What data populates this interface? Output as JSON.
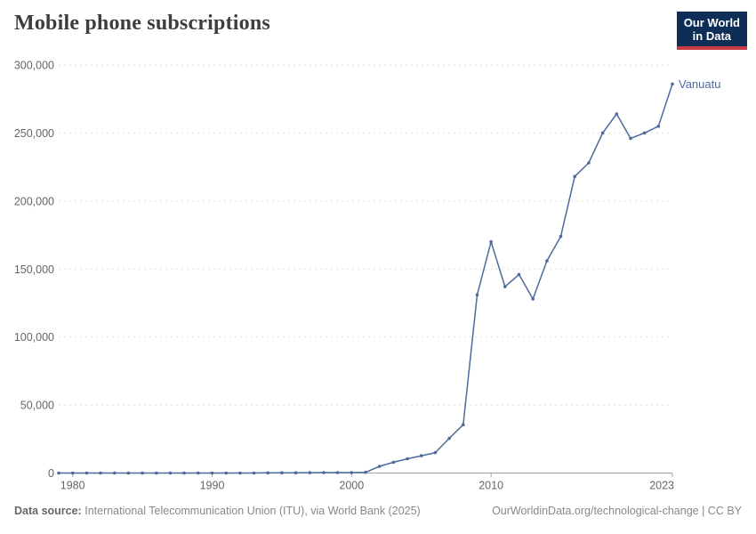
{
  "header": {
    "title": "Mobile phone subscriptions",
    "logo_line1": "Our World",
    "logo_line2": "in Data"
  },
  "footer": {
    "datasource_label": "Data source:",
    "datasource_text": "International Telecommunication Union (ITU), via World Bank (2025)",
    "link_text": "OurWorldinData.org/technological-change | CC BY"
  },
  "colors": {
    "line": "#4c6a9c",
    "entity_label": "#4c6a9c",
    "title": "#3d3d3d",
    "tick_label": "#666666",
    "grid": "#dddddd",
    "axis": "#a3a3a3",
    "footer_text": "#888888",
    "footer_bold": "#666666",
    "logo_bg": "#0f2e57",
    "logo_red": "#cb3b44"
  },
  "chart_data": {
    "type": "line",
    "title": "Mobile phone subscriptions",
    "xlabel": "",
    "ylabel": "",
    "ylim": [
      0,
      300000
    ],
    "yticks": [
      0,
      50000,
      100000,
      150000,
      200000,
      250000,
      300000
    ],
    "xticks": [
      1980,
      1990,
      2000,
      2010,
      2023
    ],
    "grid": true,
    "legend": "end-of-line entity label",
    "x": [
      1979,
      1980,
      1981,
      1982,
      1983,
      1984,
      1985,
      1986,
      1987,
      1988,
      1989,
      1990,
      1991,
      1992,
      1993,
      1994,
      1995,
      1996,
      1997,
      1998,
      1999,
      2000,
      2001,
      2002,
      2003,
      2004,
      2005,
      2006,
      2007,
      2008,
      2009,
      2010,
      2011,
      2012,
      2013,
      2014,
      2015,
      2016,
      2017,
      2018,
      2019,
      2020,
      2021,
      2022,
      2023
    ],
    "series": [
      {
        "name": "Vanuatu",
        "values": [
          0,
          0,
          0,
          0,
          0,
          0,
          0,
          0,
          0,
          0,
          0,
          0,
          0,
          0,
          0,
          150,
          180,
          220,
          260,
          300,
          320,
          350,
          500,
          4900,
          7900,
          10500,
          12700,
          15000,
          25500,
          35500,
          131000,
          170000,
          137000,
          146000,
          128000,
          156000,
          174000,
          218000,
          228000,
          250000,
          264000,
          246000,
          250000,
          255000,
          286000
        ]
      }
    ]
  }
}
